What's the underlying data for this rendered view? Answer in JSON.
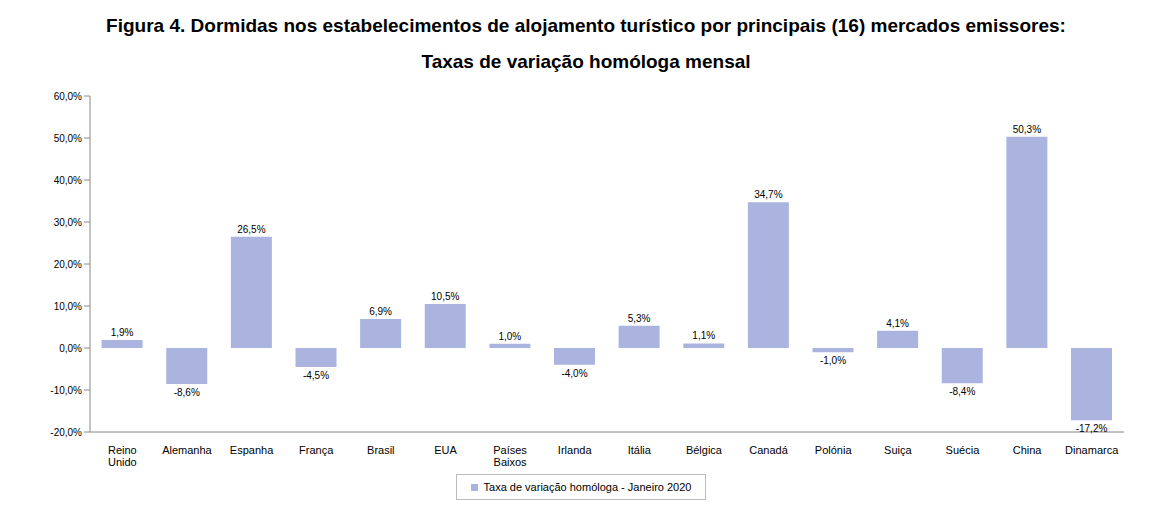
{
  "chart_data": {
    "type": "bar",
    "title": "Figura 4. Dormidas nos estabelecimentos de alojamento turístico por principais (16) mercados emissores:",
    "subtitle": "Taxas de variação homóloga mensal",
    "categories": [
      "Reino Unido",
      "Alemanha",
      "Espanha",
      "França",
      "Brasil",
      "EUA",
      "Países Baixos",
      "Irlanda",
      "Itália",
      "Bélgica",
      "Canadá",
      "Polónia",
      "Suiça",
      "Suécia",
      "China",
      "Dinamarca"
    ],
    "series": [
      {
        "name": "Taxa de variação homóloga - Janeiro 2020",
        "color": "#aab4df",
        "values": [
          1.9,
          -8.6,
          26.5,
          -4.5,
          6.9,
          10.5,
          1.0,
          -4.0,
          5.3,
          1.1,
          34.7,
          -1.0,
          4.1,
          -8.4,
          50.3,
          -17.2
        ],
        "value_labels": [
          "1,9%",
          "-8,6%",
          "26,5%",
          "-4,5%",
          "6,9%",
          "10,5%",
          "1,0%",
          "-4,0%",
          "5,3%",
          "1,1%",
          "34,7%",
          "-1,0%",
          "4,1%",
          "-8,4%",
          "50,3%",
          "-17,2%"
        ]
      }
    ],
    "ylim": [
      -20,
      60
    ],
    "yticks": [
      {
        "value": -20,
        "label": "-20,0%"
      },
      {
        "value": -10,
        "label": "-10,0%"
      },
      {
        "value": 0,
        "label": "0,0%"
      },
      {
        "value": 10,
        "label": "10,0%"
      },
      {
        "value": 20,
        "label": "20,0%"
      },
      {
        "value": 30,
        "label": "30,0%"
      },
      {
        "value": 40,
        "label": "40,0%"
      },
      {
        "value": 50,
        "label": "50,0%"
      },
      {
        "value": 60,
        "label": "60,0%"
      }
    ],
    "grid": false,
    "legend": "bottom",
    "data_labels": true
  }
}
